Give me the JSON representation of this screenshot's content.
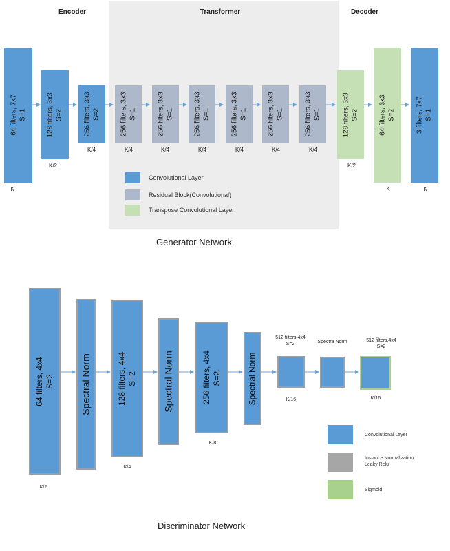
{
  "generator": {
    "section_labels": {
      "encoder": "Encoder",
      "transformer": "Transformer",
      "decoder": "Decoder"
    },
    "blocks": [
      {
        "type": "conv",
        "line1": "64 filters, 7x7",
        "line2": "S=1",
        "size_label": "K"
      },
      {
        "type": "conv",
        "line1": "128 filters, 3x3",
        "line2": "S=2",
        "size_label": "K/2"
      },
      {
        "type": "conv",
        "line1": "256 filters, 3x3",
        "line2": "S=2",
        "size_label": "K/4"
      },
      {
        "type": "res",
        "line1": "256 filters, 3x3",
        "line2": "S=1",
        "size_label": "K/4"
      },
      {
        "type": "res",
        "line1": "256 filters, 3x3",
        "line2": "S=1",
        "size_label": "K/4"
      },
      {
        "type": "res",
        "line1": "256 filters, 3x3",
        "line2": "S=1",
        "size_label": "K/4"
      },
      {
        "type": "res",
        "line1": "256 filters, 3x3",
        "line2": "S=1",
        "size_label": "K/4"
      },
      {
        "type": "res",
        "line1": "256 filters, 3x3",
        "line2": "S=1",
        "size_label": "K/4"
      },
      {
        "type": "res",
        "line1": "256 filters, 3x3",
        "line2": "S=1",
        "size_label": "K/4"
      },
      {
        "type": "tconv",
        "line1": "128 filters, 3x3",
        "line2": "S=2",
        "size_label": "K/2"
      },
      {
        "type": "tconv",
        "line1": "64 filters, 3x3",
        "line2": "S=2",
        "size_label": "K"
      },
      {
        "type": "conv",
        "line1": "3 filters, 7x7",
        "line2": "S=1",
        "size_label": "K"
      }
    ],
    "legend": [
      {
        "label": "Convolutional Layer",
        "color": "#5b9bd5"
      },
      {
        "label": "Residual Block(Convolutional)",
        "color": "#adb9ca"
      },
      {
        "label": "Transpose Convolutional Layer",
        "color": "#c5e0b4"
      }
    ],
    "title": "Generator Network"
  },
  "discriminator": {
    "blocks": [
      {
        "kind": "conv",
        "line1": "64 filters, 4x4",
        "line2": "S=2",
        "size_label": "K/2"
      },
      {
        "kind": "norm",
        "line1": "Spectral Norm"
      },
      {
        "kind": "conv",
        "line1": "128 filters, 4x4",
        "line2": "S=2",
        "size_label": "K/4"
      },
      {
        "kind": "norm",
        "line1": "Spectral Norm"
      },
      {
        "kind": "conv",
        "line1": "256 filters, 4x4",
        "line2": "S=2.",
        "size_label": "K/8"
      },
      {
        "kind": "norm",
        "line1": "Spectral Norm"
      }
    ],
    "small_blocks": [
      {
        "line1": "512 filters,4x4",
        "line2": "S=2",
        "size_label": "K/16"
      },
      {
        "line1": "Spectra Norm"
      },
      {
        "line1": "512 filters,4x4",
        "line2": "S=2",
        "size_label": "K/16"
      }
    ],
    "legend": [
      {
        "label": "Convolutional Layer",
        "color": "#5b9bd5"
      },
      {
        "label": "Instance Normalization\nLeaky Relu",
        "color": "#a6a6a6"
      },
      {
        "label": "Sigmoid",
        "color": "#a9d18e"
      }
    ],
    "title": "Discriminator Network"
  }
}
